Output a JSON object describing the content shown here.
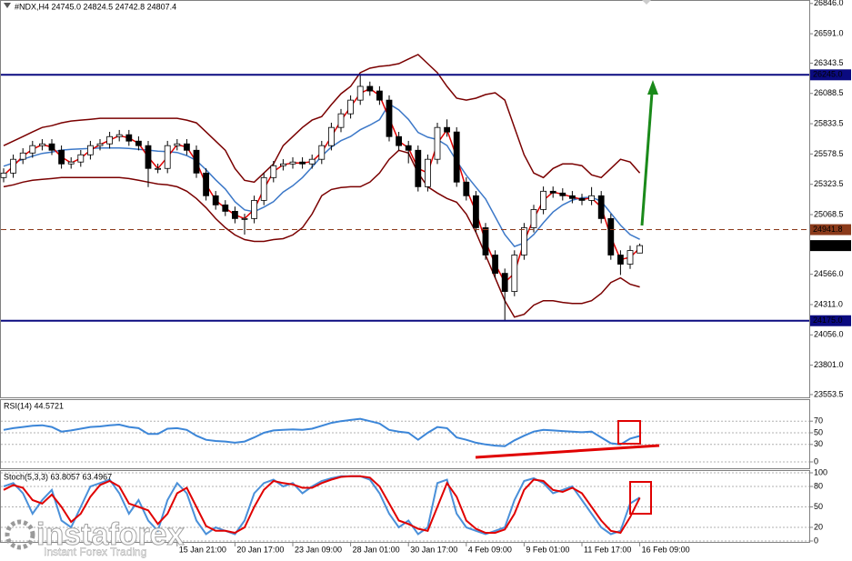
{
  "chart_data": [
    {
      "type": "candlestick",
      "title": "#NDX,H4  24745.0 24824.5 24742.8 24807.4",
      "categories": [
        null,
        null,
        null,
        null,
        null,
        null,
        null,
        null,
        null,
        null,
        null,
        null,
        null,
        null,
        null,
        null,
        null,
        null,
        "15 Jan 21:00",
        null,
        null,
        null,
        null,
        null,
        "20 Jan 17:00",
        null,
        null,
        null,
        null,
        null,
        "23 Jan 09:00",
        null,
        null,
        null,
        null,
        null,
        "28 Jan 01:00",
        null,
        null,
        null,
        null,
        null,
        "30 Jan 17:00",
        null,
        null,
        null,
        null,
        null,
        "4 Feb 09:00",
        null,
        null,
        null,
        null,
        null,
        "9 Feb 01:00",
        null,
        null,
        null,
        null,
        null,
        "11 Feb 17:00",
        null,
        null,
        null,
        null,
        null,
        "16 Feb 09:00"
      ],
      "open": [
        25380,
        25418,
        25534,
        25587,
        25649,
        25664,
        25610,
        25495,
        25511,
        25572,
        25649,
        25664,
        25725,
        25741,
        25687,
        25649,
        25457,
        25457,
        25649,
        25664,
        25610,
        25418,
        25227,
        25150,
        25096,
        25035,
        25035,
        25188,
        25380,
        25480,
        25495,
        25511,
        25495,
        25534,
        25649,
        25802,
        25917,
        26032,
        26148,
        26109,
        26032,
        25725,
        25649,
        25610,
        25303,
        25534,
        25802,
        25764,
        25342,
        25227,
        24958,
        24728,
        24574,
        24421,
        24728,
        24958,
        25111,
        25265,
        25250,
        25227,
        25204,
        25188,
        25227,
        25035,
        24728,
        24651,
        24745.0
      ],
      "high": [
        25458,
        25574,
        25627,
        25689,
        25704,
        25704,
        25650,
        25551,
        25612,
        25689,
        25704,
        25765,
        25781,
        25781,
        25727,
        25689,
        25497,
        25689,
        25704,
        25704,
        25650,
        25458,
        25267,
        25190,
        25136,
        25075,
        25228,
        25420,
        25520,
        25535,
        25551,
        25551,
        25574,
        25689,
        25842,
        25957,
        26072,
        26240,
        26188,
        26149,
        26072,
        25765,
        25689,
        25650,
        25574,
        25842,
        25870,
        25804,
        25382,
        25267,
        24998,
        24768,
        24614,
        24768,
        24998,
        25151,
        25305,
        25305,
        25290,
        25267,
        25244,
        25300,
        25267,
        25075,
        24768,
        24806,
        24824.5
      ],
      "low": [
        25340,
        25378,
        25494,
        25547,
        25609,
        25570,
        25455,
        25455,
        25471,
        25532,
        25609,
        25624,
        25685,
        25647,
        25609,
        25300,
        25417,
        25417,
        25609,
        25570,
        25378,
        25187,
        25110,
        25056,
        24995,
        24900,
        24995,
        25148,
        25340,
        25440,
        25455,
        25455,
        25455,
        25494,
        25609,
        25762,
        25877,
        25992,
        26069,
        25992,
        25685,
        25609,
        25500,
        25263,
        25263,
        25494,
        25724,
        25302,
        25187,
        24918,
        24688,
        24534,
        24175,
        24381,
        24688,
        24918,
        25071,
        25210,
        25187,
        25164,
        25148,
        25148,
        24995,
        24688,
        24560,
        24611,
        24742.8
      ],
      "close": [
        25418,
        25534,
        25587,
        25649,
        25664,
        25610,
        25495,
        25511,
        25572,
        25649,
        25664,
        25725,
        25741,
        25687,
        25649,
        25457,
        25457,
        25649,
        25664,
        25610,
        25418,
        25227,
        25150,
        25096,
        25035,
        25035,
        25188,
        25380,
        25480,
        25495,
        25511,
        25495,
        25534,
        25649,
        25802,
        25917,
        26032,
        26148,
        26109,
        26032,
        25725,
        25649,
        25610,
        25303,
        25534,
        25802,
        25764,
        25342,
        25227,
        24958,
        24728,
        24574,
        24421,
        24728,
        24958,
        25111,
        25265,
        25250,
        25227,
        25204,
        25188,
        25227,
        25035,
        24728,
        24651,
        24766,
        24807.4
      ],
      "up_color": "#ffffff",
      "down_color": "#000000",
      "wick_color": "#000000",
      "last_price_color": "#000000",
      "lines": [
        {
          "color": "#7a0000",
          "values": [
            25649,
            25687,
            25725,
            25764,
            25802,
            25817,
            25841,
            25856,
            25864,
            25871,
            25879,
            25879,
            25879,
            25879,
            25879,
            25879,
            25879,
            25879,
            25879,
            25864,
            25841,
            25764,
            25687,
            25610,
            25457,
            25357,
            25342,
            25418,
            25495,
            25649,
            25725,
            25802,
            25864,
            25894,
            25994,
            26086,
            26148,
            26263,
            26301,
            26316,
            26324,
            26339,
            26378,
            26416,
            26339,
            26263,
            26148,
            26048,
            26032,
            26048,
            26079,
            26094,
            26032,
            25802,
            25572,
            25418,
            25380,
            25457,
            25495,
            25495,
            25480,
            25403,
            25380,
            25457,
            25534,
            25511,
            25418
          ]
        },
        {
          "color": "#7a0000",
          "values": [
            25303,
            25319,
            25342,
            25357,
            25365,
            25372,
            25380,
            25380,
            25380,
            25380,
            25380,
            25380,
            25380,
            25372,
            25357,
            25342,
            25326,
            25319,
            25303,
            25265,
            25204,
            25127,
            25035,
            24958,
            24897,
            24858,
            24843,
            24843,
            24858,
            24866,
            24897,
            24958,
            25073,
            25227,
            25280,
            25296,
            25303,
            25303,
            25342,
            25418,
            25534,
            25610,
            25587,
            25418,
            25303,
            25250,
            25204,
            25173,
            25073,
            24920,
            24728,
            24536,
            24344,
            24206,
            24229,
            24306,
            24344,
            24344,
            24329,
            24321,
            24321,
            24344,
            24405,
            24497,
            24536,
            24482,
            24459
          ]
        },
        {
          "color": "#3c78c8",
          "values": [
            25476,
            25503,
            25534,
            25561,
            25584,
            25595,
            25611,
            25618,
            25622,
            25626,
            25630,
            25630,
            25630,
            25626,
            25618,
            25611,
            25603,
            25599,
            25591,
            25565,
            25523,
            25446,
            25361,
            25284,
            25177,
            25108,
            25093,
            25131,
            25177,
            25258,
            25311,
            25380,
            25469,
            25561,
            25637,
            25691,
            25726,
            25783,
            25822,
            25867,
            26000,
            25950,
            25870,
            25760,
            25720,
            25700,
            25650,
            25520,
            25400,
            25300,
            25200,
            25050,
            24900,
            24800,
            24830,
            24900,
            25000,
            25090,
            25150,
            25190,
            25210,
            25215,
            25180,
            25080,
            24980,
            24900,
            24860
          ]
        },
        {
          "color": "#e00000",
          "values": [
            25399,
            25476,
            25561,
            25618,
            25657,
            25637,
            25553,
            25503,
            25542,
            25611,
            25657,
            25695,
            25733,
            25714,
            25668,
            25553,
            25457,
            25553,
            25657,
            25637,
            25514,
            25323,
            25189,
            25123,
            25066,
            25035,
            25112,
            25284,
            25430,
            25488,
            25503,
            25503,
            25515,
            25592,
            25726,
            25860,
            25975,
            26090,
            26129,
            26071,
            25879,
            25687,
            25630,
            25457,
            25419,
            25668,
            25783,
            25553,
            25285,
            25093,
            24843,
            24651,
            24498,
            24575,
            24843,
            25035,
            25188,
            25258,
            25239,
            25216,
            25196,
            25208,
            25131,
            24882,
            24690,
            24709,
            24787
          ]
        }
      ],
      "levels": [
        {
          "value": 26245,
          "label": "26245.0",
          "color": "#0a0a80",
          "dash": false
        },
        {
          "value": 24941.8,
          "color": "#8b3a1a",
          "dash": true
        },
        {
          "value": 24175,
          "label": "24175.0",
          "color": "#0a0a80",
          "dash": false
        }
      ],
      "ylim": [
        23530,
        26875
      ],
      "yticks": [
        {
          "value": 26846,
          "label": "26846.0"
        },
        {
          "value": 26591,
          "label": "26591.0"
        },
        26343.5,
        26088.5,
        25833.5,
        25578.5,
        25323.5,
        25068.5,
        {
          "value": 24566,
          "label": "24566.0"
        },
        {
          "value": 24311,
          "label": "24311.0"
        },
        {
          "value": 24056,
          "label": "24056.0"
        },
        {
          "value": 23801,
          "label": "23801.0"
        },
        23553.5
      ],
      "grid": false
    },
    {
      "type": "line",
      "title": "RSI(14) 44.5721",
      "series": [
        {
          "color": "#3c86d8",
          "values": [
            55,
            58,
            60,
            62,
            63,
            60,
            52,
            54,
            57,
            60,
            61,
            63,
            64,
            60,
            58,
            48,
            48,
            57,
            58,
            55,
            45,
            38,
            36,
            35,
            33,
            35,
            42,
            50,
            54,
            55,
            56,
            55,
            57,
            62,
            67,
            70,
            72,
            74,
            70,
            66,
            55,
            52,
            50,
            38,
            50,
            60,
            58,
            42,
            38,
            33,
            30,
            28,
            27,
            37,
            45,
            52,
            55,
            54,
            53,
            52,
            51,
            52,
            42,
            32,
            30,
            40,
            44.5721
          ]
        }
      ],
      "ylim": [
        0,
        100
      ],
      "yticks": [
        70,
        50,
        30,
        0
      ],
      "grid": true
    },
    {
      "type": "line",
      "title": "Stoch(5,3,3) 63.8057 63.4967",
      "series": [
        {
          "color": "#4a90d9",
          "values": [
            80,
            85,
            70,
            40,
            60,
            75,
            30,
            20,
            50,
            80,
            85,
            90,
            70,
            40,
            60,
            30,
            15,
            60,
            85,
            70,
            30,
            10,
            20,
            15,
            10,
            30,
            70,
            85,
            90,
            80,
            85,
            70,
            80,
            88,
            92,
            95,
            95,
            95,
            90,
            70,
            40,
            20,
            30,
            10,
            20,
            85,
            90,
            40,
            20,
            15,
            10,
            15,
            20,
            60,
            88,
            92,
            85,
            70,
            75,
            80,
            60,
            40,
            20,
            10,
            15,
            55,
            63.8057
          ]
        },
        {
          "color": "#e00000",
          "values": [
            75,
            82,
            78,
            60,
            55,
            68,
            50,
            28,
            40,
            65,
            82,
            88,
            80,
            55,
            50,
            45,
            25,
            40,
            70,
            78,
            50,
            22,
            15,
            15,
            12,
            20,
            50,
            75,
            88,
            85,
            83,
            78,
            78,
            85,
            90,
            94,
            95,
            95,
            93,
            80,
            55,
            30,
            25,
            18,
            15,
            50,
            85,
            65,
            30,
            18,
            12,
            12,
            17,
            40,
            75,
            90,
            88,
            75,
            72,
            78,
            70,
            50,
            30,
            15,
            12,
            35,
            63.4967
          ]
        }
      ],
      "ylim": [
        0,
        100
      ],
      "yticks": [
        100,
        80,
        50,
        20,
        0
      ],
      "grid": true
    }
  ],
  "watermark": {
    "brand": "instaforex",
    "tagline": "Instant Forex Trading"
  }
}
